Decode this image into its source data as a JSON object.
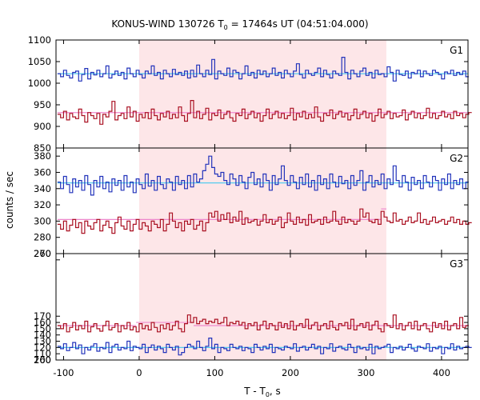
{
  "chart_data": {
    "type": "line",
    "title": "KONUS-WIND 130726 T",
    "title_sub": "0",
    "title_rest": " = 17464s UT (04:51:04.000)",
    "xlabel": "T - T",
    "xlabel_sub": "0",
    "xlabel_rest": ", s",
    "ylabel": "counts / sec",
    "xlim": [
      -110,
      435
    ],
    "x_ticks": [
      -100,
      0,
      100,
      200,
      300,
      400
    ],
    "x_tick_labels": [
      "-100",
      "0",
      "100",
      "200",
      "300",
      "400"
    ],
    "shaded_interval": [
      0,
      327
    ],
    "colors": {
      "shade": "#fde6e8",
      "blue": "#2233bb",
      "red": "#aa1122",
      "blue_fit": "#55ccee",
      "red_fit": "#ee88cc"
    },
    "bin": {
      "start": -108,
      "width": 4
    },
    "panels": [
      {
        "label": "G1",
        "ylim": [
          850,
          1100
        ],
        "y_ticks": [
          850,
          900,
          950,
          1000,
          1050,
          1100
        ],
        "y_tick_labels": [
          "850",
          "900",
          "950",
          "1000",
          "1050",
          "1100"
        ],
        "series": [
          {
            "color": "blue",
            "values": [
              1022,
              1015,
              1030,
              1018,
              1012,
              1025,
              1028,
              1005,
              1020,
              1034,
              1010,
              1025,
              1019,
              1030,
              1015,
              1022,
              1040,
              1012,
              1020,
              1028,
              1018,
              1025,
              1010,
              1035,
              1022,
              1015,
              1030,
              1020,
              1012,
              1028,
              1022,
              1040,
              1018,
              1025,
              1010,
              1030,
              1022,
              1015,
              1032,
              1020,
              1025,
              1018,
              1028,
              1012,
              1030,
              1015,
              1042,
              1022,
              1015,
              1030,
              1020,
              1055,
              1010,
              1028,
              1022,
              1018,
              1035,
              1015,
              1030,
              1025,
              1010,
              1022,
              1040,
              1018,
              1025,
              1012,
              1030,
              1020,
              1028,
              1015,
              1022,
              1035,
              1018,
              1025,
              1012,
              1030,
              1022,
              1015,
              1028,
              1045,
              1020,
              1012,
              1030,
              1022,
              1018,
              1025,
              1035,
              1015,
              1030,
              1020,
              1012,
              1028,
              1022,
              1018,
              1060,
              1025,
              1010,
              1030,
              1022,
              1015,
              1028,
              1035,
              1018,
              1025,
              1012,
              1030,
              1020,
              1022,
              1015,
              1038,
              1025,
              1005,
              1030,
              1020,
              1018,
              1028,
              1012,
              1025,
              1022,
              1030,
              1015,
              1028,
              1022,
              1018,
              1030,
              1025,
              1020,
              1010,
              1026,
              1022,
              1030,
              1018,
              1025,
              1020,
              1028,
              1015
            ],
            "fit": [
              {
                "x0": -108,
                "x1": 435,
                "y": 1022
              }
            ]
          },
          {
            "color": "red",
            "values": [
              928,
              920,
              935,
              915,
              930,
              922,
              918,
              940,
              925,
              910,
              932,
              925,
              918,
              930,
              905,
              928,
              922,
              935,
              958,
              915,
              925,
              930,
              918,
              945,
              922,
              935,
              912,
              928,
              920,
              932,
              918,
              940,
              925,
              915,
              930,
              922,
              935,
              918,
              928,
              920,
              945,
              925,
              912,
              930,
              960,
              920,
              935,
              918,
              928,
              942,
              915,
              930,
              925,
              938,
              918,
              928,
              935,
              920,
              912,
              930,
              925,
              940,
              918,
              928,
              935,
              920,
              930,
              912,
              925,
              940,
              918,
              928,
              935,
              920,
              930,
              918,
              925,
              942,
              915,
              930,
              922,
              935,
              918,
              928,
              920,
              945,
              922,
              912,
              930,
              925,
              938,
              918,
              928,
              935,
              922,
              930,
              915,
              925,
              940,
              918,
              928,
              935,
              920,
              930,
              912,
              925,
              940,
              920,
              928,
              935,
              918,
              930,
              922,
              925,
              938,
              915,
              928,
              935,
              920,
              930,
              918,
              925,
              942,
              920,
              930,
              918,
              925,
              935,
              922,
              928,
              918,
              935,
              925,
              930,
              920,
              928,
              932
            ],
            "fit": [
              {
                "x0": -108,
                "x1": 435,
                "y": 932
              }
            ]
          }
        ]
      },
      {
        "label": "G2",
        "ylim": [
          260,
          390
        ],
        "y_ticks": [
          260,
          280,
          300,
          320,
          340,
          360,
          380
        ],
        "y_tick_labels": [
          "260",
          "280",
          "300",
          "320",
          "340",
          "360",
          "380"
        ],
        "series": [
          {
            "color": "blue",
            "values": [
              348,
              340,
              355,
              345,
              335,
              352,
              342,
              350,
              338,
              356,
              345,
              332,
              350,
              342,
              355,
              340,
              348,
              336,
              352,
              344,
              350,
              338,
              356,
              342,
              348,
              335,
              352,
              345,
              340,
              358,
              343,
              350,
              338,
              355,
              345,
              340,
              352,
              348,
              338,
              355,
              345,
              350,
              340,
              356,
              342,
              358,
              348,
              352,
              362,
              370,
              380,
              366,
              358,
              355,
              360,
              350,
              345,
              358,
              352,
              344,
              356,
              348,
              340,
              354,
              360,
              345,
              352,
              342,
              358,
              350,
              338,
              356,
              345,
              352,
              368,
              350,
              344,
              356,
              348,
              340,
              354,
              345,
              358,
              342,
              350,
              338,
              356,
              345,
              352,
              340,
              358,
              348,
              342,
              355,
              346,
              350,
              340,
              356,
              344,
              350,
              362,
              338,
              348,
              356,
              342,
              350,
              345,
              358,
              340,
              352,
              345,
              368,
              350,
              342,
              356,
              348,
              338,
              354,
              345,
              350,
              340,
              356,
              348,
              342,
              355,
              350,
              338,
              352,
              345,
              358,
              340,
              350,
              345,
              352,
              340,
              348
            ],
            "fit": [
              {
                "x0": -108,
                "x1": 435,
                "y": 347
              }
            ]
          },
          {
            "color": "red",
            "values": [
              296,
              290,
              300,
              288,
              295,
              302,
              292,
              298,
              285,
              300,
              294,
              290,
              298,
              302,
              288,
              295,
              300,
              292,
              285,
              298,
              305,
              294,
              290,
              300,
              288,
              296,
              302,
              290,
              298,
              294,
              288,
              300,
              296,
              292,
              302,
              288,
              296,
              310,
              300,
              292,
              298,
              288,
              300,
              296,
              302,
              290,
              295,
              300,
              288,
              298,
              310,
              305,
              312,
              300,
              308,
              302,
              310,
              298,
              305,
              300,
              312,
              296,
              304,
              298,
              300,
              302,
              295,
              300,
              308,
              298,
              302,
              296,
              300,
              305,
              292,
              298,
              310,
              300,
              296,
              305,
              298,
              302,
              295,
              308,
              298,
              300,
              302,
              296,
              305,
              298,
              300,
              312,
              300,
              296,
              305,
              298,
              302,
              300,
              296,
              300,
              315,
              305,
              310,
              300,
              298,
              302,
              296,
              312,
              305,
              300,
              298,
              310,
              300,
              302,
              296,
              300,
              305,
              298,
              300,
              310,
              298,
              302,
              296,
              300,
              305,
              298,
              300,
              302,
              296,
              300,
              305,
              298,
              302,
              296,
              300,
              296,
              298
            ],
            "fit": [
              {
                "x0": -108,
                "x1": 320,
                "y": 302
              },
              {
                "x0": 320,
                "x1": 327,
                "y": 315
              }
            ]
          }
        ]
      },
      {
        "label": "G3",
        "ylim": [
          100,
          270
        ],
        "y_ticks": [
          100,
          110,
          120,
          130,
          140,
          150,
          160,
          170,
          260,
          270
        ],
        "y_tick_labels": [
          "100",
          "110",
          "120",
          "130",
          "140",
          "150",
          "160",
          "170",
          "260",
          "270"
        ],
        "series": [
          {
            "color": "red",
            "values": [
              155,
              150,
              158,
              145,
              152,
              160,
              148,
              155,
              150,
              162,
              145,
              153,
              158,
              150,
              146,
              155,
              162,
              148,
              152,
              158,
              145,
              155,
              150,
              160,
              148,
              153,
              145,
              158,
              150,
              155,
              148,
              160,
              152,
              145,
              156,
              150,
              158,
              148,
              155,
              162,
              150,
              145,
              158,
              172,
              160,
              168,
              158,
              162,
              165,
              158,
              162,
              160,
              165,
              158,
              160,
              168,
              155,
              160,
              158,
              162,
              156,
              160,
              150,
              158,
              155,
              160,
              148,
              156,
              162,
              150,
              158,
              155,
              148,
              160,
              152,
              158,
              150,
              162,
              148,
              155,
              158,
              152,
              165,
              150,
              156,
              160,
              148,
              155,
              158,
              150,
              162,
              152,
              148,
              158,
              155,
              160,
              150,
              165,
              148,
              155,
              158,
              152,
              160,
              148,
              156,
              162,
              150,
              145,
              158,
              155,
              152,
              172,
              150,
              158,
              148,
              155,
              160,
              150,
              162,
              148,
              155,
              158,
              150,
              145,
              160,
              152,
              158,
              150,
              162,
              148,
              155,
              158,
              150,
              168,
              152,
              155
            ],
            "fit": [
              {
                "x0": -108,
                "x1": -4,
                "y": 155
              },
              {
                "x0": -4,
                "x1": 72,
                "y": 160
              },
              {
                "x0": 72,
                "x1": 435,
                "y": 155
              }
            ]
          },
          {
            "color": "blue",
            "values": [
              122,
              118,
              126,
              115,
              120,
              128,
              118,
              124,
              110,
              120,
              116,
              122,
              126,
              114,
              120,
              118,
              128,
              112,
              122,
              125,
              116,
              120,
              118,
              130,
              115,
              122,
              120,
              118,
              125,
              112,
              120,
              124,
              116,
              122,
              118,
              112,
              125,
              120,
              116,
              122,
              108,
              112,
              120,
              125,
              122,
              118,
              130,
              120,
              115,
              122,
              135,
              118,
              125,
              112,
              120,
              118,
              115,
              125,
              120,
              118,
              122,
              115,
              120,
              118,
              112,
              125,
              120,
              116,
              122,
              118,
              125,
              112,
              120,
              118,
              116,
              122,
              120,
              118,
              126,
              114,
              120,
              122,
              116,
              120,
              125,
              118,
              122,
              110,
              120,
              118,
              126,
              114,
              120,
              122,
              118,
              116,
              125,
              120,
              112,
              122,
              118,
              120,
              116,
              125,
              110,
              122,
              118,
              120,
              122,
              125,
              112,
              120,
              118,
              122,
              116,
              120,
              125,
              118,
              114,
              122,
              120,
              118,
              126,
              114,
              120,
              118,
              122,
              110,
              120,
              118,
              126,
              116,
              122,
              118,
              120,
              122,
              120
            ],
            "fit": [
              {
                "x0": -108,
                "x1": 435,
                "y": 120
              }
            ]
          }
        ]
      }
    ]
  }
}
